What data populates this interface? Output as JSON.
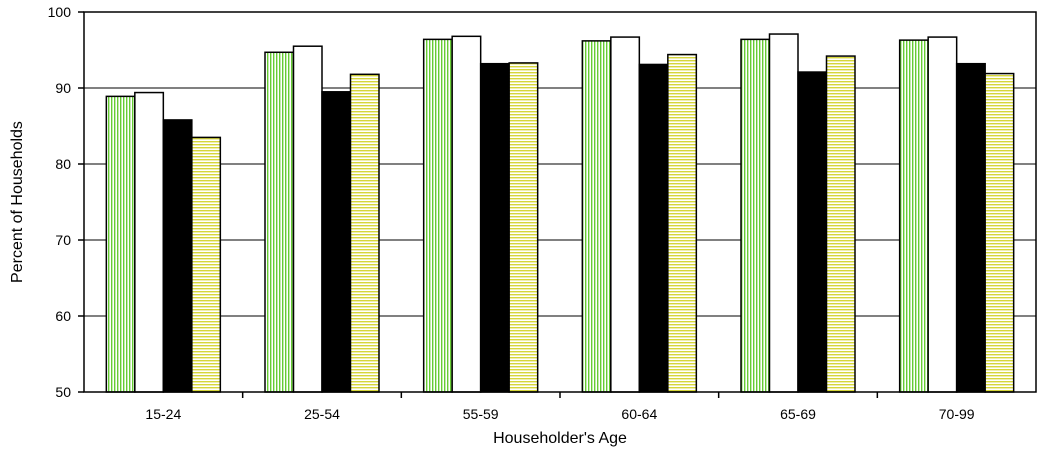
{
  "chart_data": {
    "type": "bar",
    "title": "",
    "xlabel": "Householder's Age",
    "ylabel": "Percent of Households",
    "ylim": [
      50,
      100
    ],
    "yticks": [
      50,
      60,
      70,
      80,
      90,
      100
    ],
    "grid": true,
    "legend": "none",
    "categories": [
      "15-24",
      "25-54",
      "55-59",
      "60-64",
      "65-69",
      "70-99"
    ],
    "series": [
      {
        "values": [
          88.9,
          94.7,
          96.4,
          96.2,
          96.4,
          96.3
        ],
        "color": "#cfe9a5",
        "pattern": "vertical-lines",
        "pattern_color": "#66cc33"
      },
      {
        "values": [
          89.4,
          95.5,
          96.8,
          96.7,
          97.1,
          96.7
        ],
        "color": "#ffffff",
        "pattern": "none"
      },
      {
        "values": [
          85.8,
          89.5,
          93.2,
          93.1,
          92.1,
          93.2
        ],
        "color": "#000000",
        "pattern": "none"
      },
      {
        "values": [
          83.5,
          91.8,
          93.3,
          94.4,
          94.2,
          91.9
        ],
        "color": "#f2f2a0",
        "pattern": "horizontal-lines",
        "pattern_color": "#cccc33"
      }
    ]
  }
}
